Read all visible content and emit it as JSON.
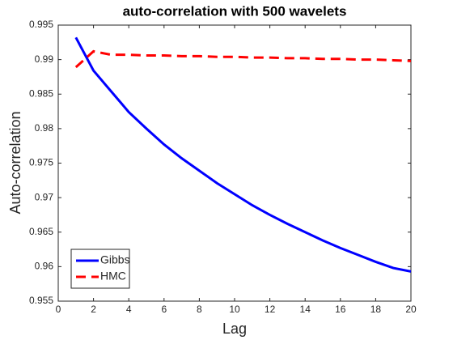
{
  "chart_data": {
    "type": "line",
    "title": "auto-correlation with 500 wavelets",
    "x_label": "Lag",
    "y_label": "Auto-correlation",
    "x": [
      1,
      2,
      3,
      4,
      5,
      6,
      7,
      8,
      9,
      10,
      11,
      12,
      13,
      14,
      15,
      16,
      17,
      18,
      19,
      20
    ],
    "series": [
      {
        "name": "Gibbs",
        "color": "#0000ff",
        "style": "solid",
        "values": [
          0.9932,
          0.9884,
          0.9854,
          0.9824,
          0.98,
          0.9777,
          0.9757,
          0.9739,
          0.9721,
          0.9705,
          0.9689,
          0.9675,
          0.9662,
          0.965,
          0.9638,
          0.9627,
          0.9617,
          0.9607,
          0.9598,
          0.9593
        ]
      },
      {
        "name": "HMC",
        "color": "#ff0000",
        "style": "dashed",
        "values": [
          0.9889,
          0.9912,
          0.9907,
          0.9907,
          0.9906,
          0.9906,
          0.9905,
          0.9905,
          0.9904,
          0.9904,
          0.9903,
          0.9903,
          0.9902,
          0.9902,
          0.9901,
          0.9901,
          0.99,
          0.99,
          0.9899,
          0.9898
        ]
      }
    ],
    "xlim": [
      0,
      20
    ],
    "xticks": [
      0,
      2,
      4,
      6,
      8,
      10,
      12,
      14,
      16,
      18,
      20
    ],
    "ylim": [
      0.955,
      0.995
    ],
    "yticks": [
      0.955,
      0.96,
      0.965,
      0.97,
      0.975,
      0.98,
      0.985,
      0.99,
      0.995
    ],
    "grid": false,
    "legend": "lower left"
  }
}
